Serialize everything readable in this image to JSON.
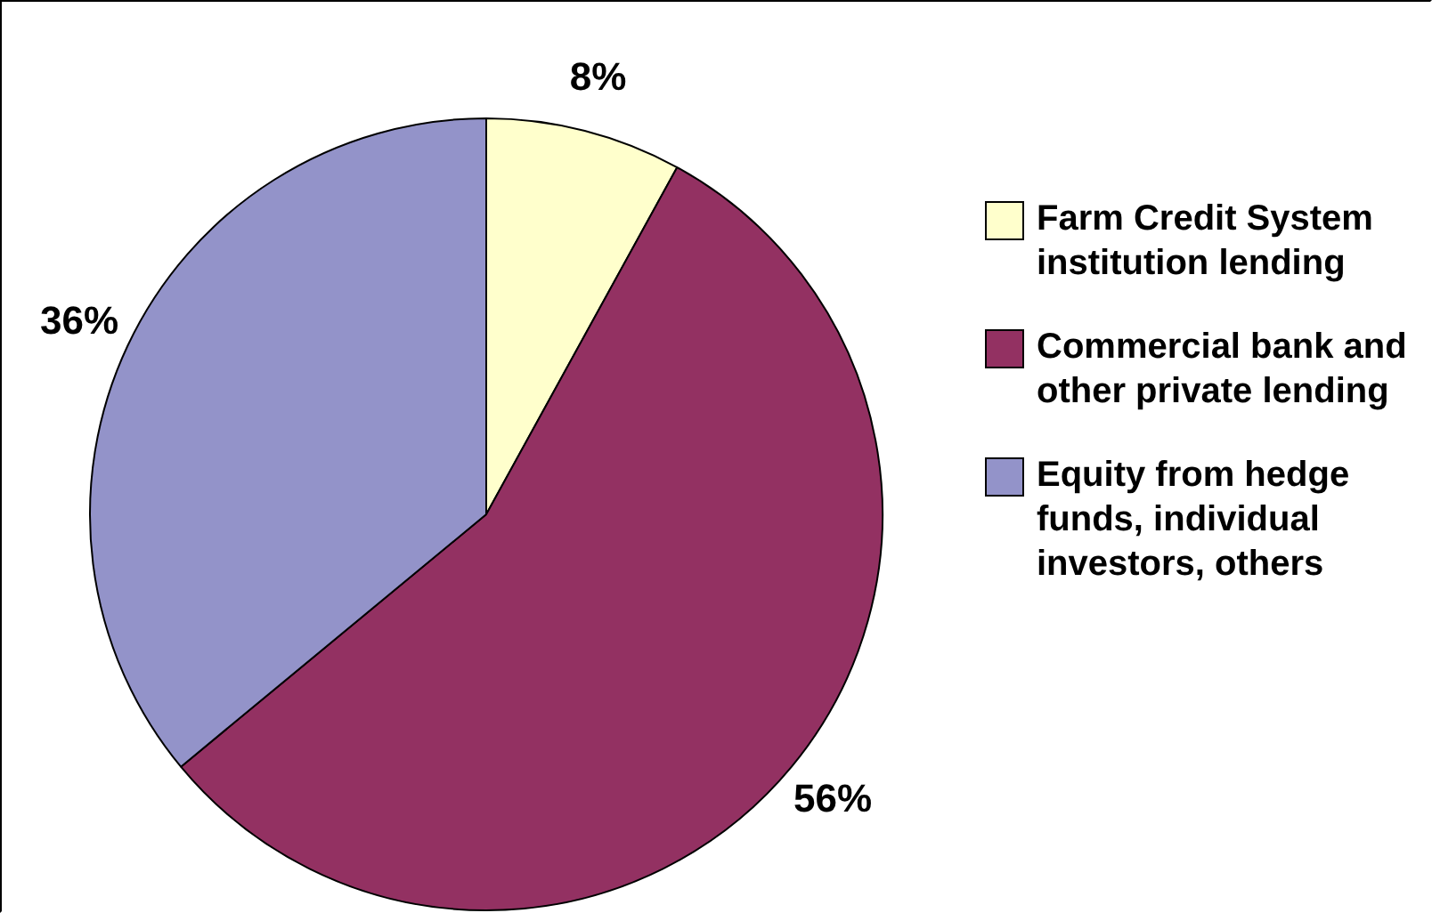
{
  "chart_data": {
    "type": "pie",
    "categories": [
      "Farm Credit System institution lending",
      "Commercial bank and other private lending",
      "Equity from hedge funds, individual investors, others"
    ],
    "values": [
      8,
      56,
      36
    ],
    "colors": [
      "#ffffcc",
      "#933162",
      "#9393c9"
    ],
    "value_labels": [
      "8%",
      "56%",
      "36%"
    ],
    "legend": "right"
  }
}
